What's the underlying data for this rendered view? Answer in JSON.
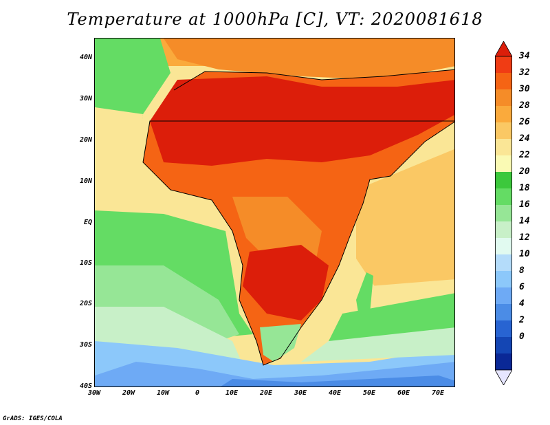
{
  "title": "Temperature at 1000hPa [C], VT: 2020081618",
  "credit": "GrADS: IGES/COLA",
  "map": {
    "lat_labels": [
      "40N",
      "30N",
      "20N",
      "10N",
      "EQ",
      "10S",
      "20S",
      "30S",
      "40S"
    ],
    "lon_labels": [
      "30W",
      "20W",
      "10W",
      "0",
      "10E",
      "20E",
      "30E",
      "40E",
      "50E",
      "60E",
      "70E"
    ],
    "lat_range": [
      -40,
      45
    ],
    "lon_range": [
      -30,
      75
    ]
  },
  "colorbar": {
    "labels": [
      "34",
      "32",
      "30",
      "28",
      "26",
      "24",
      "22",
      "20",
      "18",
      "16",
      "14",
      "12",
      "10",
      "8",
      "6",
      "4",
      "2",
      "0"
    ],
    "colors": [
      "#dc1e0a",
      "#f03c14",
      "#f56414",
      "#f58c28",
      "#faaa3c",
      "#fac864",
      "#fae696",
      "#fafab4",
      "#3cc83c",
      "#64dc64",
      "#96e696",
      "#c8f0c8",
      "#e1faf0",
      "#b4dcfa",
      "#8cc8fa",
      "#6eaaf5",
      "#4b8ce6",
      "#2864d2",
      "#1446b4",
      "#0a2896",
      "#00106e"
    ],
    "units": "C"
  }
}
